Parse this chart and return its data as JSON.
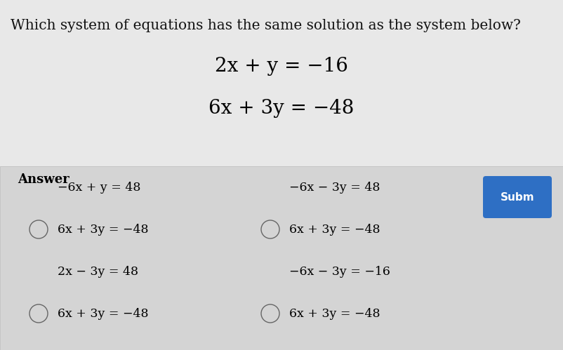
{
  "bg_top_color": "#e8e8e8",
  "bg_bottom_color": "#d8d8d8",
  "title": "Which system of equations has the same solution as the system below?",
  "title_fontsize": 15,
  "eq1": "2x + y = −16",
  "eq2": "6x + 3y = −48",
  "answer_label": "Answer",
  "submit_btn_color": "#2e6fc4",
  "submit_btn_text": "Subm",
  "options": [
    {
      "id": 0,
      "line1": "−6x + y = 48",
      "line2": "6x + 3y = −48",
      "col": 0
    },
    {
      "id": 1,
      "line1": "2x − 3y = 48",
      "line2": "6x + 3y = −48",
      "col": 0
    },
    {
      "id": 2,
      "line1": "−6x − 3y = 48",
      "line2": "6x + 3y = −48",
      "col": 1
    },
    {
      "id": 3,
      "line1": "−6x − 3y = −16",
      "line2": "6x + 3y = −48",
      "col": 1
    }
  ]
}
